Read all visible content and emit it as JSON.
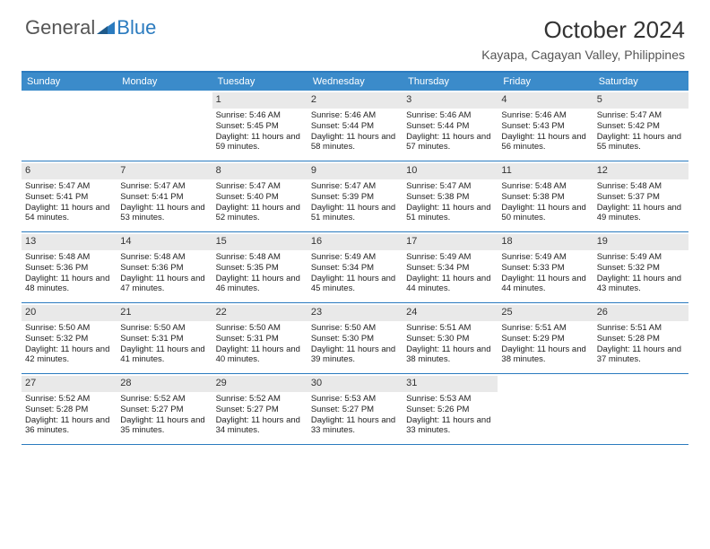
{
  "brand": {
    "part1": "General",
    "part2": "Blue"
  },
  "title": "October 2024",
  "location": "Kayapa, Cagayan Valley, Philippines",
  "day_headers": [
    "Sunday",
    "Monday",
    "Tuesday",
    "Wednesday",
    "Thursday",
    "Friday",
    "Saturday"
  ],
  "colors": {
    "header_bg": "#3b8bca",
    "header_text": "#ffffff",
    "border": "#2b7bbf",
    "daynum_bg": "#e9e9e9",
    "text": "#222222"
  },
  "weeks": [
    [
      {
        "n": "",
        "sr": "",
        "ss": "",
        "dl": ""
      },
      {
        "n": "",
        "sr": "",
        "ss": "",
        "dl": ""
      },
      {
        "n": "1",
        "sr": "Sunrise: 5:46 AM",
        "ss": "Sunset: 5:45 PM",
        "dl": "Daylight: 11 hours and 59 minutes."
      },
      {
        "n": "2",
        "sr": "Sunrise: 5:46 AM",
        "ss": "Sunset: 5:44 PM",
        "dl": "Daylight: 11 hours and 58 minutes."
      },
      {
        "n": "3",
        "sr": "Sunrise: 5:46 AM",
        "ss": "Sunset: 5:44 PM",
        "dl": "Daylight: 11 hours and 57 minutes."
      },
      {
        "n": "4",
        "sr": "Sunrise: 5:46 AM",
        "ss": "Sunset: 5:43 PM",
        "dl": "Daylight: 11 hours and 56 minutes."
      },
      {
        "n": "5",
        "sr": "Sunrise: 5:47 AM",
        "ss": "Sunset: 5:42 PM",
        "dl": "Daylight: 11 hours and 55 minutes."
      }
    ],
    [
      {
        "n": "6",
        "sr": "Sunrise: 5:47 AM",
        "ss": "Sunset: 5:41 PM",
        "dl": "Daylight: 11 hours and 54 minutes."
      },
      {
        "n": "7",
        "sr": "Sunrise: 5:47 AM",
        "ss": "Sunset: 5:41 PM",
        "dl": "Daylight: 11 hours and 53 minutes."
      },
      {
        "n": "8",
        "sr": "Sunrise: 5:47 AM",
        "ss": "Sunset: 5:40 PM",
        "dl": "Daylight: 11 hours and 52 minutes."
      },
      {
        "n": "9",
        "sr": "Sunrise: 5:47 AM",
        "ss": "Sunset: 5:39 PM",
        "dl": "Daylight: 11 hours and 51 minutes."
      },
      {
        "n": "10",
        "sr": "Sunrise: 5:47 AM",
        "ss": "Sunset: 5:38 PM",
        "dl": "Daylight: 11 hours and 51 minutes."
      },
      {
        "n": "11",
        "sr": "Sunrise: 5:48 AM",
        "ss": "Sunset: 5:38 PM",
        "dl": "Daylight: 11 hours and 50 minutes."
      },
      {
        "n": "12",
        "sr": "Sunrise: 5:48 AM",
        "ss": "Sunset: 5:37 PM",
        "dl": "Daylight: 11 hours and 49 minutes."
      }
    ],
    [
      {
        "n": "13",
        "sr": "Sunrise: 5:48 AM",
        "ss": "Sunset: 5:36 PM",
        "dl": "Daylight: 11 hours and 48 minutes."
      },
      {
        "n": "14",
        "sr": "Sunrise: 5:48 AM",
        "ss": "Sunset: 5:36 PM",
        "dl": "Daylight: 11 hours and 47 minutes."
      },
      {
        "n": "15",
        "sr": "Sunrise: 5:48 AM",
        "ss": "Sunset: 5:35 PM",
        "dl": "Daylight: 11 hours and 46 minutes."
      },
      {
        "n": "16",
        "sr": "Sunrise: 5:49 AM",
        "ss": "Sunset: 5:34 PM",
        "dl": "Daylight: 11 hours and 45 minutes."
      },
      {
        "n": "17",
        "sr": "Sunrise: 5:49 AM",
        "ss": "Sunset: 5:34 PM",
        "dl": "Daylight: 11 hours and 44 minutes."
      },
      {
        "n": "18",
        "sr": "Sunrise: 5:49 AM",
        "ss": "Sunset: 5:33 PM",
        "dl": "Daylight: 11 hours and 44 minutes."
      },
      {
        "n": "19",
        "sr": "Sunrise: 5:49 AM",
        "ss": "Sunset: 5:32 PM",
        "dl": "Daylight: 11 hours and 43 minutes."
      }
    ],
    [
      {
        "n": "20",
        "sr": "Sunrise: 5:50 AM",
        "ss": "Sunset: 5:32 PM",
        "dl": "Daylight: 11 hours and 42 minutes."
      },
      {
        "n": "21",
        "sr": "Sunrise: 5:50 AM",
        "ss": "Sunset: 5:31 PM",
        "dl": "Daylight: 11 hours and 41 minutes."
      },
      {
        "n": "22",
        "sr": "Sunrise: 5:50 AM",
        "ss": "Sunset: 5:31 PM",
        "dl": "Daylight: 11 hours and 40 minutes."
      },
      {
        "n": "23",
        "sr": "Sunrise: 5:50 AM",
        "ss": "Sunset: 5:30 PM",
        "dl": "Daylight: 11 hours and 39 minutes."
      },
      {
        "n": "24",
        "sr": "Sunrise: 5:51 AM",
        "ss": "Sunset: 5:30 PM",
        "dl": "Daylight: 11 hours and 38 minutes."
      },
      {
        "n": "25",
        "sr": "Sunrise: 5:51 AM",
        "ss": "Sunset: 5:29 PM",
        "dl": "Daylight: 11 hours and 38 minutes."
      },
      {
        "n": "26",
        "sr": "Sunrise: 5:51 AM",
        "ss": "Sunset: 5:28 PM",
        "dl": "Daylight: 11 hours and 37 minutes."
      }
    ],
    [
      {
        "n": "27",
        "sr": "Sunrise: 5:52 AM",
        "ss": "Sunset: 5:28 PM",
        "dl": "Daylight: 11 hours and 36 minutes."
      },
      {
        "n": "28",
        "sr": "Sunrise: 5:52 AM",
        "ss": "Sunset: 5:27 PM",
        "dl": "Daylight: 11 hours and 35 minutes."
      },
      {
        "n": "29",
        "sr": "Sunrise: 5:52 AM",
        "ss": "Sunset: 5:27 PM",
        "dl": "Daylight: 11 hours and 34 minutes."
      },
      {
        "n": "30",
        "sr": "Sunrise: 5:53 AM",
        "ss": "Sunset: 5:27 PM",
        "dl": "Daylight: 11 hours and 33 minutes."
      },
      {
        "n": "31",
        "sr": "Sunrise: 5:53 AM",
        "ss": "Sunset: 5:26 PM",
        "dl": "Daylight: 11 hours and 33 minutes."
      },
      {
        "n": "",
        "sr": "",
        "ss": "",
        "dl": ""
      },
      {
        "n": "",
        "sr": "",
        "ss": "",
        "dl": ""
      }
    ]
  ]
}
